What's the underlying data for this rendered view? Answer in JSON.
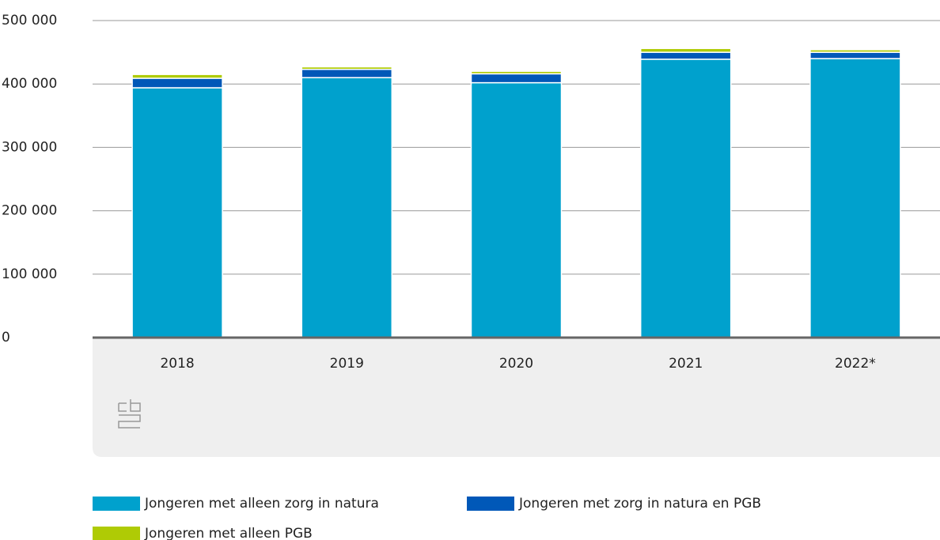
{
  "chart_data": {
    "type": "stacked_bar",
    "categories": [
      "2018",
      "2019",
      "2020",
      "2021",
      "2022*"
    ],
    "series": [
      {
        "name": "Jongeren met alleen zorg in natura",
        "color": "#00a1cd",
        "values": [
          394000,
          410000,
          402000,
          439000,
          440000
        ]
      },
      {
        "name": "Jongeren met zorg in natura en PGB",
        "color": "#0058b8",
        "values": [
          15000,
          13000,
          14000,
          11000,
          10000
        ]
      },
      {
        "name": "Jongeren met alleen PGB",
        "color": "#afcb05",
        "values": [
          6000,
          4000,
          4000,
          6000,
          4000
        ]
      }
    ],
    "ylim": [
      0,
      500000
    ],
    "yticks": [
      0,
      {
        "value": 100000,
        "label": "100 000"
      },
      {
        "value": 200000,
        "label": "200 000"
      },
      {
        "value": 300000,
        "label": "300 000"
      },
      {
        "value": 400000,
        "label": "400 000"
      },
      {
        "value": 500000,
        "label": "500 000"
      }
    ],
    "grid": true
  }
}
